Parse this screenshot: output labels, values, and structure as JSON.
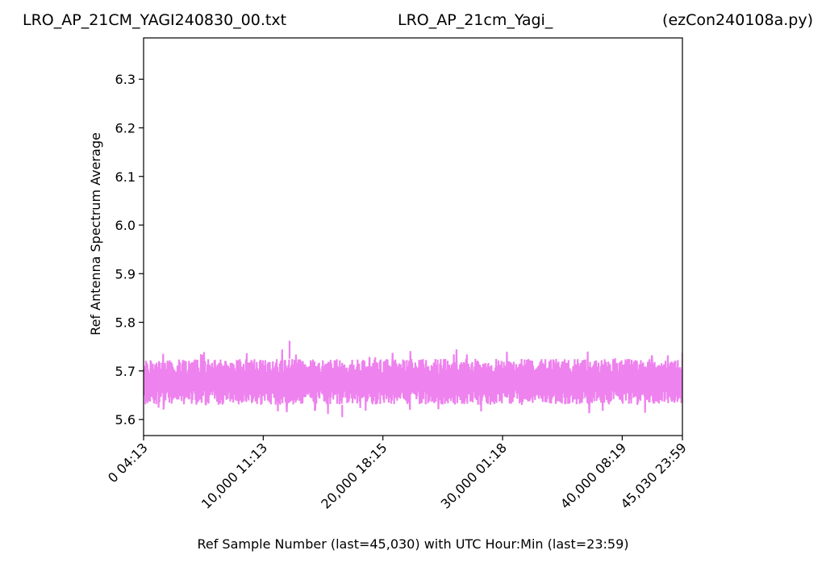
{
  "titles": {
    "left": "LRO_AP_21CM_YAGI240830_00.txt",
    "center": "LRO_AP_21cm_Yagi_",
    "right": "(ezCon240108a.py)"
  },
  "chart_data": {
    "type": "line",
    "xlabel": "Ref Sample Number (last=45,030) with UTC Hour:Min (last=23:59)",
    "ylabel": "Ref Antenna Spectrum Average",
    "xlim": [
      0,
      45030
    ],
    "ylim": [
      5.567,
      6.385
    ],
    "x_ticks": [
      {
        "value": 0,
        "label": "0  04:13"
      },
      {
        "value": 10000,
        "label": "10,000  11:13"
      },
      {
        "value": 20000,
        "label": "20,000  18:15"
      },
      {
        "value": 30000,
        "label": "30,000  01:18"
      },
      {
        "value": 40000,
        "label": "40,000  08:19"
      },
      {
        "value": 45030,
        "label": "45,030  23:59"
      }
    ],
    "y_ticks": [
      {
        "value": 5.6,
        "label": "5.6"
      },
      {
        "value": 5.7,
        "label": "5.7"
      },
      {
        "value": 5.8,
        "label": "5.8"
      },
      {
        "value": 5.9,
        "label": "5.9"
      },
      {
        "value": 6.0,
        "label": "6.0"
      },
      {
        "value": 6.1,
        "label": "6.1"
      },
      {
        "value": 6.2,
        "label": "6.2"
      },
      {
        "value": 6.3,
        "label": "6.3"
      }
    ],
    "grid": false,
    "series": [
      {
        "color": "#ee82ee",
        "center": 5.675,
        "typical_low": 5.63,
        "typical_high": 5.725,
        "min": 5.605,
        "max": 5.762,
        "x": [
          0,
          2000,
          4000,
          6000,
          8000,
          10000,
          12000,
          12200,
          14000,
          16000,
          18000,
          20000,
          22000,
          24000,
          26000,
          28000,
          30000,
          32000,
          34000,
          36000,
          38000,
          40000,
          42000,
          44000,
          45030
        ],
        "y": [
          5.675,
          5.68,
          5.67,
          5.675,
          5.68,
          5.672,
          5.676,
          5.762,
          5.67,
          5.675,
          5.68,
          5.674,
          5.672,
          5.678,
          5.675,
          5.67,
          5.676,
          5.68,
          5.674,
          5.672,
          5.678,
          5.675,
          5.67,
          5.676,
          5.675
        ]
      }
    ]
  }
}
